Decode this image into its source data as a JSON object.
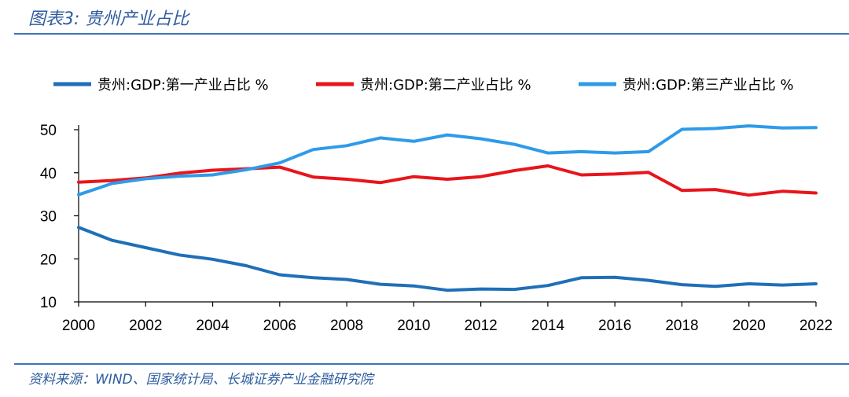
{
  "header": {
    "title": "图表3:  贵州产业占比"
  },
  "footer": {
    "source": "资料来源：WIND、国家统计局、长城证券产业金融研究院"
  },
  "chart_data": {
    "type": "line",
    "title": "贵州产业占比",
    "xlabel": "",
    "ylabel": "",
    "x": [
      2000,
      2001,
      2002,
      2003,
      2004,
      2005,
      2006,
      2007,
      2008,
      2009,
      2010,
      2011,
      2012,
      2013,
      2014,
      2015,
      2016,
      2017,
      2018,
      2019,
      2020,
      2021,
      2022
    ],
    "xticks": [
      "2000",
      "2002",
      "2004",
      "2006",
      "2008",
      "2010",
      "2012",
      "2014",
      "2016",
      "2018",
      "2020",
      "2022"
    ],
    "ylim": [
      10,
      50
    ],
    "yticks": [
      "10",
      "20",
      "30",
      "40",
      "50"
    ],
    "legend_position": "top",
    "series": [
      {
        "name": "贵州:GDP:第一产业占比 %",
        "color": "#1F6FB8",
        "values": [
          27.3,
          24.3,
          22.6,
          20.9,
          19.9,
          18.4,
          16.3,
          15.6,
          15.2,
          14.1,
          13.7,
          12.7,
          13.0,
          12.9,
          13.8,
          15.6,
          15.7,
          15.0,
          14.0,
          13.6,
          14.2,
          13.9,
          14.2
        ]
      },
      {
        "name": "贵州:GDP:第二产业占比 %",
        "color": "#E8151B",
        "values": [
          37.8,
          38.2,
          38.8,
          39.9,
          40.6,
          40.9,
          41.3,
          39.0,
          38.5,
          37.7,
          39.1,
          38.5,
          39.1,
          40.5,
          41.6,
          39.5,
          39.7,
          40.1,
          35.9,
          36.1,
          34.8,
          35.7,
          35.3
        ]
      },
      {
        "name": "贵州:GDP:第三产业占比 %",
        "color": "#2F9BE8",
        "values": [
          34.9,
          37.5,
          38.6,
          39.2,
          39.5,
          40.7,
          42.3,
          45.4,
          46.3,
          48.1,
          47.3,
          48.8,
          47.9,
          46.6,
          44.6,
          44.9,
          44.6,
          44.9,
          50.1,
          50.3,
          50.9,
          50.4,
          50.5
        ]
      }
    ]
  }
}
